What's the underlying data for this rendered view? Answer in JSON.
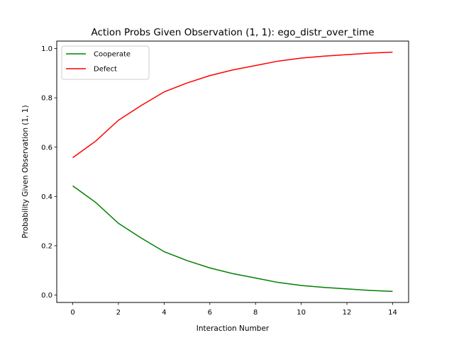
{
  "chart_data": {
    "type": "line",
    "title": "Action Probs Given Observation (1, 1): ego_distr_over_time",
    "xlabel": "Interaction Number",
    "ylabel": "Probability Given Observation (1, 1)",
    "x": [
      0,
      1,
      2,
      3,
      4,
      5,
      6,
      7,
      8,
      9,
      10,
      11,
      12,
      13,
      14
    ],
    "xlim": [
      -0.7,
      14.7
    ],
    "ylim": [
      -0.03,
      1.03
    ],
    "xticks": [
      0,
      2,
      4,
      6,
      8,
      10,
      12,
      14
    ],
    "yticks": [
      0.0,
      0.2,
      0.4,
      0.6,
      0.8,
      1.0
    ],
    "xtick_labels": [
      "0",
      "2",
      "4",
      "6",
      "8",
      "10",
      "12",
      "14"
    ],
    "ytick_labels": [
      "0.0",
      "0.2",
      "0.4",
      "0.6",
      "0.8",
      "1.0"
    ],
    "grid": false,
    "legend_position": "top-left",
    "series": [
      {
        "name": "Cooperate",
        "color": "#008000",
        "values": [
          0.443,
          0.376,
          0.291,
          0.231,
          0.176,
          0.14,
          0.11,
          0.087,
          0.069,
          0.051,
          0.039,
          0.031,
          0.025,
          0.019,
          0.015
        ]
      },
      {
        "name": "Defect",
        "color": "#ff0000",
        "values": [
          0.557,
          0.624,
          0.709,
          0.769,
          0.824,
          0.86,
          0.89,
          0.913,
          0.931,
          0.949,
          0.961,
          0.969,
          0.975,
          0.981,
          0.985
        ]
      }
    ]
  }
}
